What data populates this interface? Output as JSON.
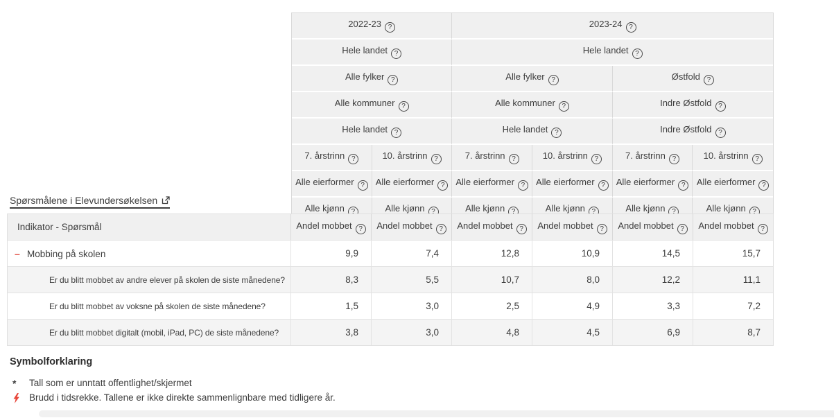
{
  "link": {
    "label": "Spørsmålene i Elevundersøkelsen"
  },
  "icons": {
    "help": "?",
    "collapse": "–",
    "external_link": "external-link-icon",
    "lightning": "lightning-bolt-icon"
  },
  "colors": {
    "header_bg": "#f0f0f0",
    "stripe_bg": "#f4f4f4",
    "header_border": "#d9d9d9",
    "data_border": "#e3e3e3",
    "text": "#3d3d3d",
    "accent_red": "#e2574c"
  },
  "filters": {
    "header_rows": [
      [
        {
          "label": "2022-23",
          "span": 2
        },
        {
          "label": "2023-24",
          "span": 4
        }
      ],
      [
        {
          "label": "Hele landet",
          "span": 2
        },
        {
          "label": "Hele landet",
          "span": 4
        }
      ],
      [
        {
          "label": "Alle fylker",
          "span": 2
        },
        {
          "label": "Alle fylker",
          "span": 2
        },
        {
          "label": "Østfold",
          "span": 2
        }
      ],
      [
        {
          "label": "Alle kommuner",
          "span": 2
        },
        {
          "label": "Alle kommuner",
          "span": 2
        },
        {
          "label": "Indre Østfold",
          "span": 2
        }
      ],
      [
        {
          "label": "Hele landet",
          "span": 2
        },
        {
          "label": "Hele landet",
          "span": 2
        },
        {
          "label": "Indre Østfold",
          "span": 2
        }
      ],
      [
        {
          "label": "7. årstrinn",
          "span": 1
        },
        {
          "label": "10. årstrinn",
          "span": 1
        },
        {
          "label": "7. årstrinn",
          "span": 1
        },
        {
          "label": "10. årstrinn",
          "span": 1
        },
        {
          "label": "7. årstrinn",
          "span": 1
        },
        {
          "label": "10. årstrinn",
          "span": 1
        }
      ],
      [
        {
          "label": "Alle eierformer",
          "span": 1
        },
        {
          "label": "Alle eierformer",
          "span": 1
        },
        {
          "label": "Alle eierformer",
          "span": 1
        },
        {
          "label": "Alle eierformer",
          "span": 1
        },
        {
          "label": "Alle eierformer",
          "span": 1
        },
        {
          "label": "Alle eierformer",
          "span": 1
        }
      ],
      [
        {
          "label": "Alle kjønn",
          "span": 1
        },
        {
          "label": "Alle kjønn",
          "span": 1
        },
        {
          "label": "Alle kjønn",
          "span": 1
        },
        {
          "label": "Alle kjønn",
          "span": 1
        },
        {
          "label": "Alle kjønn",
          "span": 1
        },
        {
          "label": "Alle kjønn",
          "span": 1
        }
      ]
    ]
  },
  "table": {
    "corner_label": "Indikator - Spørsmål",
    "measures": [
      "Andel mobbet",
      "Andel mobbet",
      "Andel mobbet",
      "Andel mobbet",
      "Andel mobbet",
      "Andel mobbet"
    ],
    "rows": [
      {
        "label": "Mobbing på skolen",
        "level": 0,
        "has_toggle": true,
        "values": [
          "9,9",
          "7,4",
          "12,8",
          "10,9",
          "14,5",
          "15,7"
        ]
      },
      {
        "label": "Er du blitt mobbet av andre elever på skolen de siste månedene?",
        "level": 1,
        "has_toggle": false,
        "values": [
          "8,3",
          "5,5",
          "10,7",
          "8,0",
          "12,2",
          "11,1"
        ]
      },
      {
        "label": "Er du blitt mobbet av voksne på skolen de siste månedene?",
        "level": 1,
        "has_toggle": false,
        "values": [
          "1,5",
          "3,0",
          "2,5",
          "4,9",
          "3,3",
          "7,2"
        ]
      },
      {
        "label": "Er du blitt mobbet digitalt (mobil, iPad, PC) de siste månedene?",
        "level": 1,
        "has_toggle": false,
        "values": [
          "3,8",
          "3,0",
          "4,8",
          "4,5",
          "6,9",
          "8,7"
        ]
      }
    ]
  },
  "legend": {
    "title": "Symbolforklaring",
    "items": [
      {
        "symbol": "*",
        "icon": "asterisk",
        "text": "Tall som er unntatt offentlighet/skjermet"
      },
      {
        "symbol": "lightning-bolt-icon",
        "icon": "lightning",
        "text": "Brudd i tidsrekke. Tallene er ikke direkte sammenlignbare med tidligere år."
      }
    ]
  }
}
